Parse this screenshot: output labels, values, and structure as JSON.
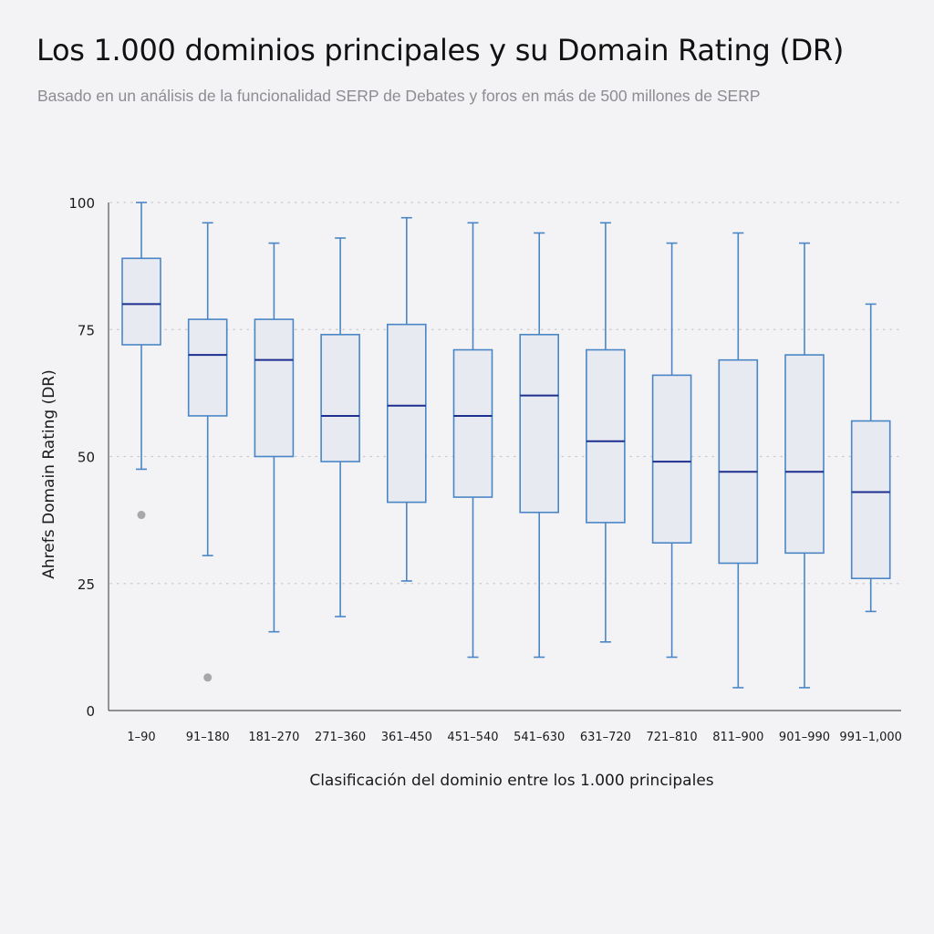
{
  "title": "Los 1.000 dominios principales y su Domain Rating (DR)",
  "subtitle": "Basado en un análisis de la funcionalidad SERP de Debates y foros en más de 500 millones de SERP",
  "chart_data": {
    "type": "boxplot",
    "title": "Los 1.000 dominios principales y su Domain Rating (DR)",
    "subtitle": "Basado en un análisis de la funcionalidad SERP de Debates y foros en más de 500 millones de SERP",
    "xlabel": "Clasificación del dominio entre los 1.000 principales",
    "ylabel": "Ahrefs Domain Rating (DR)",
    "ylim": [
      0,
      100
    ],
    "yticks": [
      0,
      25,
      50,
      75,
      100
    ],
    "grid": "horizontal dotted",
    "categories": [
      "1–90",
      "91–180",
      "181–270",
      "271–360",
      "361–450",
      "451–540",
      "541–630",
      "631–720",
      "721–810",
      "811–900",
      "901–990",
      "991–1,000"
    ],
    "boxes": [
      {
        "min": 47.5,
        "q1": 72,
        "median": 80,
        "q3": 89,
        "max": 100,
        "outliers": [
          38.5
        ]
      },
      {
        "min": 30.5,
        "q1": 58,
        "median": 70,
        "q3": 77,
        "max": 96,
        "outliers": [
          6.5
        ]
      },
      {
        "min": 15.5,
        "q1": 50,
        "median": 69,
        "q3": 77,
        "max": 92,
        "outliers": []
      },
      {
        "min": 18.5,
        "q1": 49,
        "median": 58,
        "q3": 74,
        "max": 93,
        "outliers": []
      },
      {
        "min": 25.5,
        "q1": 41,
        "median": 60,
        "q3": 76,
        "max": 97,
        "outliers": []
      },
      {
        "min": 10.5,
        "q1": 42,
        "median": 58,
        "q3": 71,
        "max": 96,
        "outliers": []
      },
      {
        "min": 10.5,
        "q1": 39,
        "median": 62,
        "q3": 74,
        "max": 94,
        "outliers": []
      },
      {
        "min": 13.5,
        "q1": 37,
        "median": 53,
        "q3": 71,
        "max": 96,
        "outliers": []
      },
      {
        "min": 10.5,
        "q1": 33,
        "median": 49,
        "q3": 66,
        "max": 92,
        "outliers": []
      },
      {
        "min": 4.5,
        "q1": 29,
        "median": 47,
        "q3": 69,
        "max": 94,
        "outliers": []
      },
      {
        "min": 4.5,
        "q1": 31,
        "median": 47,
        "q3": 70,
        "max": 92,
        "outliers": []
      },
      {
        "min": 19.5,
        "q1": 26,
        "median": 43,
        "q3": 57,
        "max": 80,
        "outliers": []
      }
    ],
    "colors": {
      "box_stroke": "#4a86c6",
      "box_fill": "#e8eaf1",
      "median": "#1d2f8f",
      "outlier": "#a8a8a8",
      "grid": "#c9c9cf",
      "axis": "#555555"
    }
  }
}
